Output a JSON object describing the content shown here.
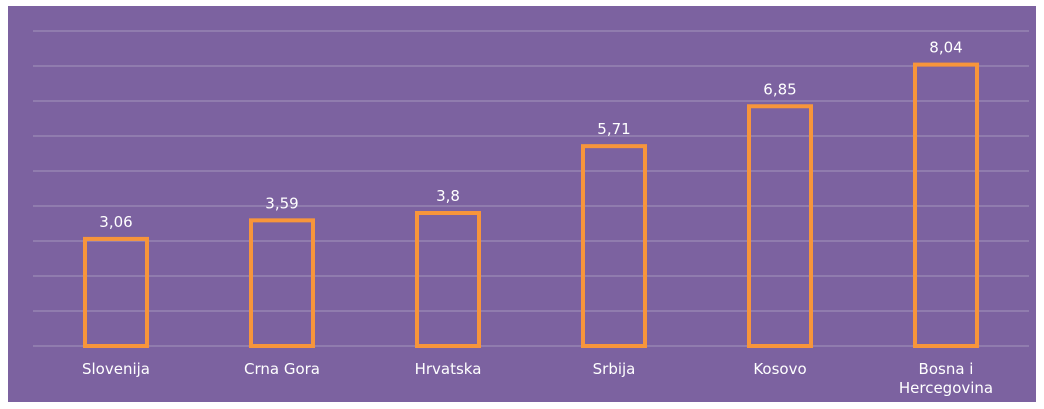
{
  "chart_data": {
    "type": "bar",
    "categories": [
      "Slovenija",
      "Crna Gora",
      "Hrvatska",
      "Srbija",
      "Kosovo",
      "Bosna i Hercegovina"
    ],
    "values": [
      3.06,
      3.59,
      3.8,
      5.71,
      6.85,
      8.04
    ],
    "value_labels": [
      "3,06",
      "3,59",
      "3,8",
      "5,71",
      "6,85",
      "8,04"
    ],
    "color": "#f7953b",
    "ylim": [
      0,
      9
    ],
    "yticks": [
      0,
      1,
      2,
      3,
      4,
      5,
      6,
      7,
      8,
      9
    ],
    "grid": true
  }
}
